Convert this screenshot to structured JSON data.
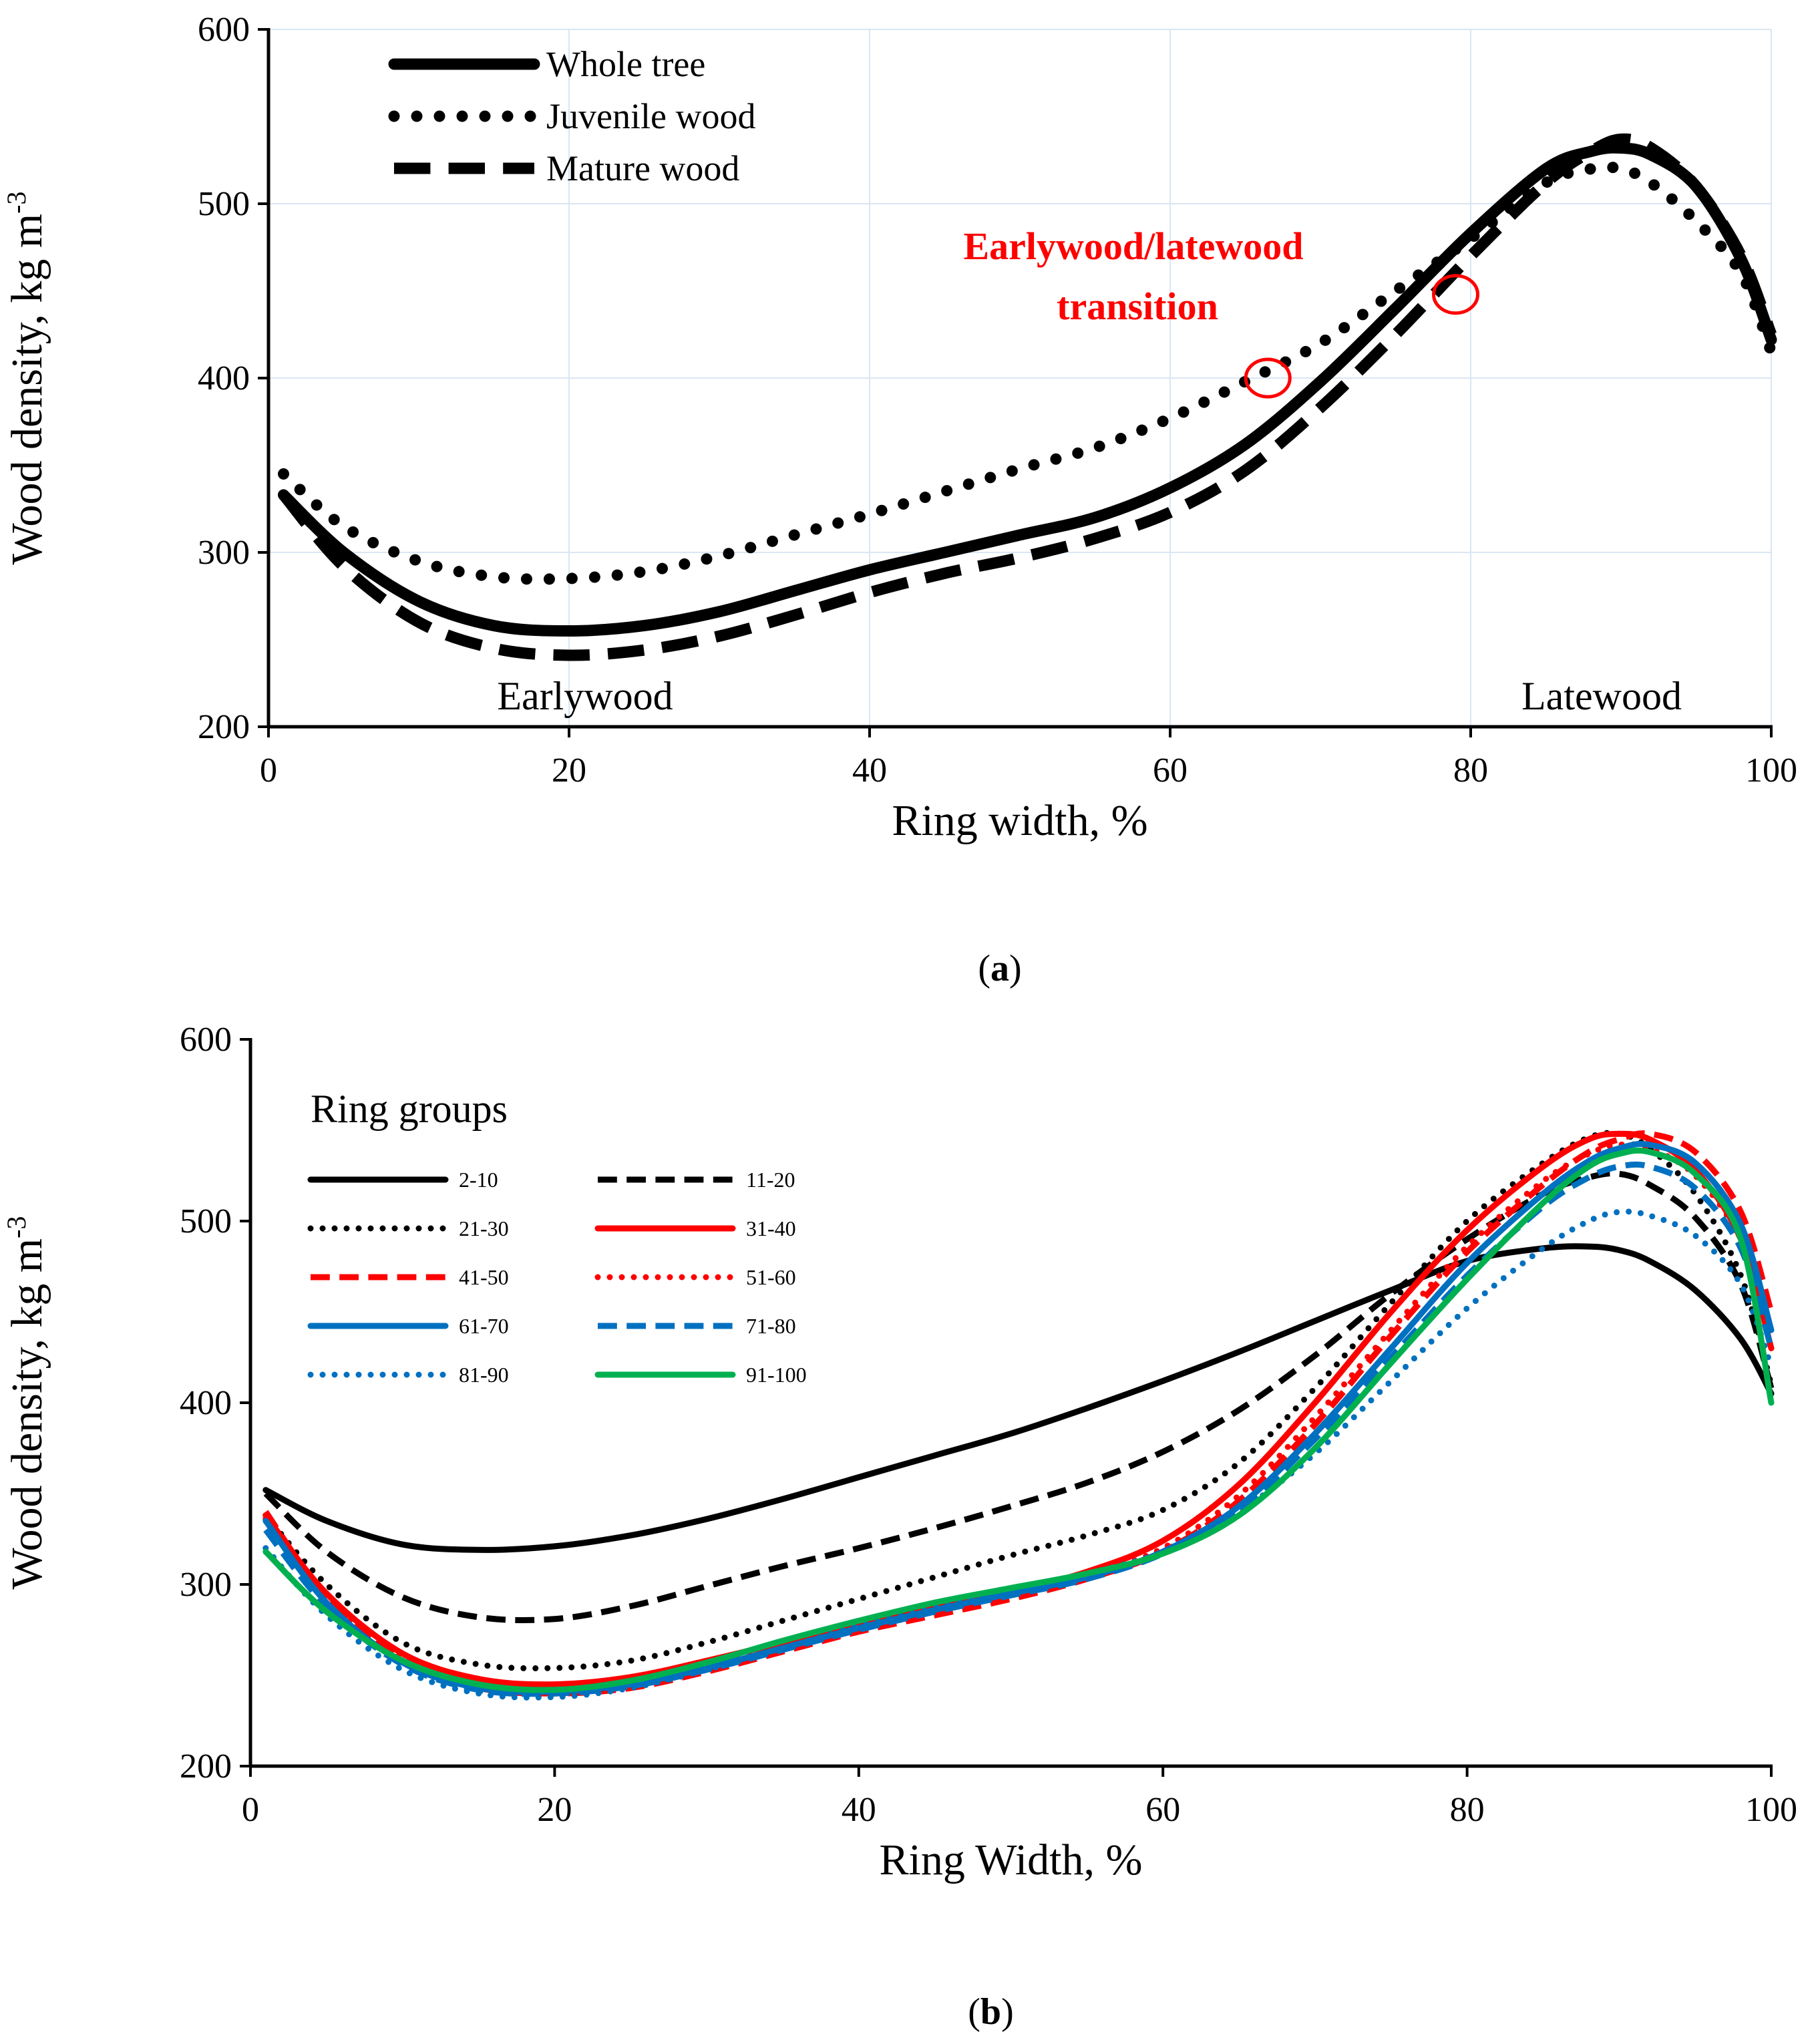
{
  "chart_data": [
    {
      "type": "line",
      "panel_label": {
        "open": "(",
        "letter": "a",
        "close": ")"
      },
      "xlabel": "Ring width, %",
      "ylabel": {
        "text": "Wood density, kg m",
        "sup": "-3"
      },
      "xlim": [
        0,
        100
      ],
      "ylim": [
        200,
        600
      ],
      "xticks": [
        0,
        20,
        40,
        60,
        80,
        100
      ],
      "yticks": [
        200,
        300,
        400,
        500,
        600
      ],
      "grid": true,
      "legend_position": "top-left",
      "region_labels": [
        "Earlywood",
        "Latewood"
      ],
      "annotation": {
        "lines": [
          "Earlywood/latewood",
          "transition"
        ]
      },
      "transition_points": [
        {
          "x": 66.5,
          "y": 400
        },
        {
          "x": 79,
          "y": 448
        }
      ],
      "series": [
        {
          "name": "Whole tree",
          "style": "solid",
          "color": "#000000",
          "x": [
            1,
            5,
            10,
            15,
            20,
            25,
            30,
            35,
            40,
            45,
            50,
            55,
            60,
            65,
            70,
            75,
            80,
            85,
            88,
            90,
            92,
            95,
            98,
            100
          ],
          "y": [
            333,
            300,
            272,
            258,
            255,
            258,
            266,
            278,
            290,
            300,
            310,
            320,
            337,
            362,
            398,
            440,
            483,
            520,
            530,
            532,
            528,
            510,
            468,
            422
          ]
        },
        {
          "name": "Juvenile wood",
          "style": "dotted",
          "color": "#000000",
          "x": [
            1,
            5,
            10,
            15,
            20,
            25,
            30,
            35,
            40,
            45,
            50,
            55,
            60,
            65,
            70,
            75,
            80,
            85,
            88,
            90,
            92,
            95,
            98,
            100
          ],
          "y": [
            345,
            315,
            295,
            286,
            285,
            289,
            298,
            310,
            322,
            335,
            348,
            360,
            377,
            398,
            420,
            450,
            480,
            512,
            520,
            520,
            512,
            490,
            460,
            415
          ]
        },
        {
          "name": "Mature wood",
          "style": "dashed",
          "color": "#000000",
          "x": [
            1,
            5,
            10,
            15,
            20,
            25,
            30,
            35,
            40,
            45,
            50,
            55,
            60,
            65,
            70,
            75,
            80,
            85,
            88,
            90,
            92,
            95,
            98,
            100
          ],
          "y": [
            333,
            292,
            260,
            245,
            241,
            244,
            252,
            264,
            277,
            288,
            297,
            308,
            323,
            347,
            383,
            425,
            470,
            512,
            530,
            537,
            532,
            510,
            470,
            425
          ]
        }
      ]
    },
    {
      "type": "line",
      "panel_label": {
        "open": "(",
        "letter": "b",
        "close": ")"
      },
      "xlabel": "Ring Width, %",
      "ylabel": {
        "text": "Wood density, kg m",
        "sup": "-3"
      },
      "xlim": [
        0,
        100
      ],
      "ylim": [
        200,
        600
      ],
      "xticks": [
        0,
        20,
        40,
        60,
        80,
        100
      ],
      "yticks": [
        200,
        300,
        400,
        500,
        600
      ],
      "grid": false,
      "legend_title": "Ring groups",
      "legend_position": "top-left",
      "series": [
        {
          "name": "2-10",
          "style": "solid",
          "color": "#000000",
          "x": [
            1,
            5,
            10,
            15,
            20,
            25,
            30,
            35,
            40,
            45,
            50,
            55,
            60,
            65,
            70,
            75,
            80,
            85,
            88,
            90,
            92,
            95,
            98,
            100
          ],
          "y": [
            352,
            335,
            322,
            319,
            321,
            327,
            336,
            347,
            359,
            371,
            383,
            397,
            412,
            428,
            445,
            462,
            478,
            485,
            486,
            484,
            478,
            462,
            435,
            405
          ]
        },
        {
          "name": "11-20",
          "style": "dashed",
          "color": "#000000",
          "x": [
            1,
            5,
            10,
            15,
            20,
            25,
            30,
            35,
            40,
            45,
            50,
            55,
            60,
            65,
            70,
            75,
            80,
            85,
            88,
            90,
            92,
            95,
            98,
            100
          ],
          "y": [
            350,
            318,
            293,
            282,
            281,
            288,
            299,
            310,
            320,
            331,
            343,
            356,
            373,
            396,
            426,
            460,
            490,
            515,
            524,
            526,
            520,
            502,
            465,
            408
          ]
        },
        {
          "name": "21-30",
          "style": "dotted",
          "color": "#000000",
          "x": [
            1,
            5,
            10,
            15,
            20,
            25,
            30,
            35,
            40,
            45,
            50,
            55,
            60,
            65,
            70,
            75,
            80,
            85,
            88,
            90,
            92,
            95,
            98,
            100
          ],
          "y": [
            338,
            300,
            268,
            256,
            254,
            258,
            268,
            280,
            292,
            304,
            316,
            327,
            341,
            367,
            408,
            455,
            500,
            532,
            546,
            548,
            540,
            515,
            470,
            410
          ]
        },
        {
          "name": "31-40",
          "style": "solid",
          "color": "#ff0000",
          "x": [
            1,
            5,
            10,
            15,
            20,
            25,
            30,
            35,
            40,
            45,
            50,
            55,
            60,
            65,
            70,
            75,
            80,
            85,
            88,
            90,
            92,
            95,
            98,
            100
          ],
          "y": [
            338,
            295,
            262,
            248,
            245,
            249,
            258,
            268,
            278,
            287,
            296,
            307,
            324,
            355,
            400,
            450,
            495,
            530,
            545,
            548,
            545,
            528,
            490,
            430
          ]
        },
        {
          "name": "41-50",
          "style": "dashed",
          "color": "#ff0000",
          "x": [
            1,
            5,
            10,
            15,
            20,
            25,
            30,
            35,
            40,
            45,
            50,
            55,
            60,
            65,
            70,
            75,
            80,
            85,
            88,
            90,
            92,
            95,
            98,
            100
          ],
          "y": [
            340,
            293,
            258,
            243,
            240,
            243,
            252,
            263,
            274,
            283,
            292,
            303,
            318,
            346,
            388,
            437,
            483,
            520,
            538,
            545,
            548,
            538,
            505,
            450
          ]
        },
        {
          "name": "51-60",
          "style": "dotted",
          "color": "#ff0000",
          "x": [
            1,
            5,
            10,
            15,
            20,
            25,
            30,
            35,
            40,
            45,
            50,
            55,
            60,
            65,
            70,
            75,
            80,
            85,
            88,
            90,
            92,
            95,
            98,
            100
          ],
          "y": [
            336,
            292,
            259,
            245,
            243,
            246,
            255,
            266,
            277,
            286,
            295,
            305,
            320,
            349,
            392,
            440,
            486,
            522,
            537,
            542,
            540,
            525,
            490,
            440
          ]
        },
        {
          "name": "61-70",
          "style": "solid",
          "color": "#0070c0",
          "x": [
            1,
            5,
            10,
            15,
            20,
            25,
            30,
            35,
            40,
            45,
            50,
            55,
            60,
            65,
            70,
            75,
            80,
            85,
            88,
            90,
            92,
            95,
            98,
            100
          ],
          "y": [
            335,
            290,
            257,
            243,
            241,
            245,
            254,
            265,
            276,
            286,
            295,
            304,
            318,
            343,
            383,
            430,
            477,
            515,
            533,
            540,
            542,
            532,
            498,
            440
          ]
        },
        {
          "name": "71-80",
          "style": "dashed",
          "color": "#0070c0",
          "x": [
            1,
            5,
            10,
            15,
            20,
            25,
            30,
            35,
            40,
            45,
            50,
            55,
            60,
            65,
            70,
            75,
            80,
            85,
            88,
            90,
            92,
            95,
            98,
            100
          ],
          "y": [
            330,
            288,
            256,
            242,
            240,
            244,
            253,
            264,
            275,
            285,
            294,
            303,
            317,
            341,
            380,
            425,
            470,
            508,
            524,
            530,
            530,
            518,
            485,
            430
          ]
        },
        {
          "name": "81-90",
          "style": "dotted",
          "color": "#0070c0",
          "x": [
            1,
            5,
            10,
            15,
            20,
            25,
            30,
            35,
            40,
            45,
            50,
            55,
            60,
            65,
            70,
            75,
            80,
            85,
            88,
            90,
            92,
            95,
            98,
            100
          ],
          "y": [
            320,
            283,
            253,
            240,
            238,
            243,
            253,
            265,
            277,
            287,
            297,
            306,
            318,
            340,
            372,
            412,
            452,
            485,
            500,
            505,
            503,
            492,
            465,
            420
          ]
        },
        {
          "name": "91-100",
          "style": "solid",
          "color": "#00b050",
          "x": [
            1,
            5,
            10,
            15,
            20,
            25,
            30,
            35,
            40,
            45,
            50,
            55,
            60,
            65,
            70,
            75,
            80,
            85,
            88,
            90,
            92,
            95,
            98,
            100
          ],
          "y": [
            318,
            285,
            258,
            245,
            242,
            247,
            257,
            269,
            280,
            290,
            298,
            306,
            317,
            338,
            375,
            422,
            468,
            510,
            530,
            537,
            538,
            526,
            490,
            400
          ]
        }
      ]
    }
  ]
}
